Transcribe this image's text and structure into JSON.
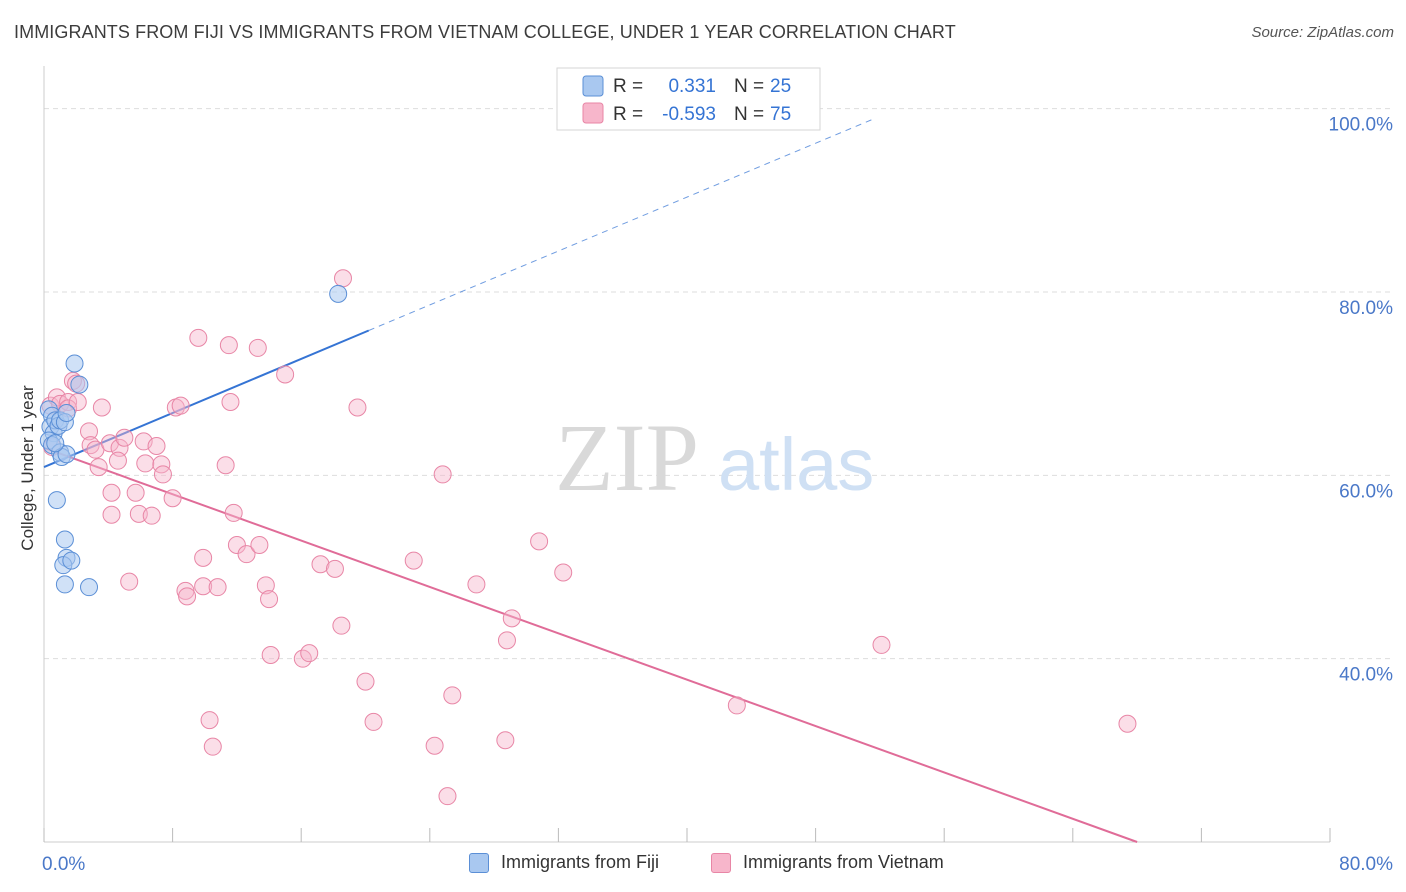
{
  "title": "IMMIGRANTS FROM FIJI VS IMMIGRANTS FROM VIETNAM COLLEGE, UNDER 1 YEAR CORRELATION CHART",
  "source": "Source: ZipAtlas.com",
  "watermark": {
    "zip": "ZIP",
    "atlas": "atlas"
  },
  "colors": {
    "fiji_fill": "#a9c8f0",
    "fiji_stroke": "#5b8fd6",
    "fiji_line": "#3574d4",
    "vietnam_fill": "#f7b6cb",
    "vietnam_stroke": "#e886a6",
    "vietnam_line": "#e06c98",
    "axis_text": "#4a78c8",
    "grid": "#dddddd"
  },
  "legend_top": [
    {
      "r_label": "R =",
      "r_value": "0.331",
      "n_label": "N =",
      "n_value": "25"
    },
    {
      "r_label": "R =",
      "r_value": "-0.593",
      "n_label": "N =",
      "n_value": "75"
    }
  ],
  "legend_bottom": [
    "Immigrants from Fiji",
    "Immigrants from Vietnam"
  ],
  "chart_data": {
    "type": "scatter",
    "title": "IMMIGRANTS FROM FIJI VS IMMIGRANTS FROM VIETNAM COLLEGE, UNDER 1 YEAR CORRELATION CHART",
    "xlabel": "",
    "ylabel": "College, Under 1 year",
    "xlim": [
      0,
      80
    ],
    "ylim": [
      20,
      104
    ],
    "x_tick_labels": [
      "0.0%",
      "80.0%"
    ],
    "y_ticks": [
      40,
      60,
      80,
      100
    ],
    "y_tick_labels": [
      "40.0%",
      "60.0%",
      "80.0%",
      "100.0%"
    ],
    "grid": true,
    "series": [
      {
        "name": "Immigrants from Fiji",
        "R": 0.331,
        "N": 25,
        "trend": {
          "x0": 0,
          "y0": 60.9,
          "x1": 20.2,
          "y1": 75.8,
          "dash_to_x": 51.5,
          "dash_to_y": 98.8
        },
        "points": [
          [
            0.3,
            67.2
          ],
          [
            0.5,
            66.5
          ],
          [
            0.4,
            65.3
          ],
          [
            0.6,
            64.6
          ],
          [
            0.3,
            63.8
          ],
          [
            0.5,
            63.3
          ],
          [
            0.7,
            66.0
          ],
          [
            0.9,
            65.4
          ],
          [
            1.0,
            66.0
          ],
          [
            1.3,
            65.8
          ],
          [
            1.4,
            66.8
          ],
          [
            1.0,
            62.5
          ],
          [
            1.1,
            62.0
          ],
          [
            1.4,
            62.3
          ],
          [
            0.8,
            57.3
          ],
          [
            1.3,
            53.0
          ],
          [
            1.4,
            51.0
          ],
          [
            1.2,
            50.2
          ],
          [
            1.7,
            50.7
          ],
          [
            2.2,
            69.9
          ],
          [
            1.9,
            72.2
          ],
          [
            1.3,
            48.1
          ],
          [
            2.8,
            47.8
          ],
          [
            18.3,
            79.8
          ],
          [
            0.7,
            63.5
          ]
        ]
      },
      {
        "name": "Immigrants from Vietnam",
        "R": -0.593,
        "N": 75,
        "trend": {
          "x0": 0,
          "y0": 63.0,
          "x1": 68.0,
          "y1": 20.0
        },
        "points": [
          [
            0.4,
            67.6
          ],
          [
            0.5,
            63.1
          ],
          [
            0.8,
            68.5
          ],
          [
            1.0,
            67.8
          ],
          [
            1.5,
            68.0
          ],
          [
            1.5,
            67.3
          ],
          [
            2.1,
            68.0
          ],
          [
            1.8,
            70.3
          ],
          [
            2.0,
            70.0
          ],
          [
            3.6,
            67.4
          ],
          [
            2.8,
            64.8
          ],
          [
            2.9,
            63.3
          ],
          [
            3.2,
            62.8
          ],
          [
            3.4,
            60.9
          ],
          [
            4.1,
            63.5
          ],
          [
            4.7,
            63.0
          ],
          [
            5.0,
            64.1
          ],
          [
            4.6,
            61.6
          ],
          [
            4.2,
            58.1
          ],
          [
            4.2,
            55.7
          ],
          [
            5.7,
            58.1
          ],
          [
            5.9,
            55.8
          ],
          [
            6.2,
            63.7
          ],
          [
            6.3,
            61.3
          ],
          [
            6.7,
            55.6
          ],
          [
            7.0,
            63.2
          ],
          [
            7.3,
            61.2
          ],
          [
            7.4,
            60.1
          ],
          [
            8.0,
            57.5
          ],
          [
            5.3,
            48.4
          ],
          [
            8.8,
            47.4
          ],
          [
            8.9,
            46.8
          ],
          [
            9.6,
            75.0
          ],
          [
            8.2,
            67.4
          ],
          [
            8.5,
            67.6
          ],
          [
            9.9,
            51.0
          ],
          [
            9.9,
            47.9
          ],
          [
            11.3,
            61.1
          ],
          [
            10.8,
            47.8
          ],
          [
            11.6,
            68.0
          ],
          [
            11.5,
            74.2
          ],
          [
            11.8,
            55.9
          ],
          [
            12.0,
            52.4
          ],
          [
            12.6,
            51.4
          ],
          [
            13.3,
            73.9
          ],
          [
            13.4,
            52.4
          ],
          [
            13.8,
            48.0
          ],
          [
            14.0,
            46.5
          ],
          [
            14.1,
            40.4
          ],
          [
            15.0,
            71.0
          ],
          [
            16.1,
            40.0
          ],
          [
            16.5,
            40.6
          ],
          [
            17.2,
            50.3
          ],
          [
            18.1,
            49.8
          ],
          [
            18.5,
            43.6
          ],
          [
            19.5,
            67.4
          ],
          [
            18.6,
            81.5
          ],
          [
            20.0,
            37.5
          ],
          [
            20.5,
            33.1
          ],
          [
            10.3,
            33.3
          ],
          [
            10.5,
            30.4
          ],
          [
            23.0,
            50.7
          ],
          [
            24.3,
            30.5
          ],
          [
            24.8,
            60.1
          ],
          [
            25.1,
            25.0
          ],
          [
            25.4,
            36.0
          ],
          [
            26.9,
            48.1
          ],
          [
            28.7,
            31.1
          ],
          [
            28.8,
            42.0
          ],
          [
            29.1,
            44.4
          ],
          [
            30.8,
            52.8
          ],
          [
            32.3,
            49.4
          ],
          [
            43.1,
            34.9
          ],
          [
            52.1,
            41.5
          ],
          [
            67.4,
            32.9
          ]
        ]
      }
    ]
  }
}
